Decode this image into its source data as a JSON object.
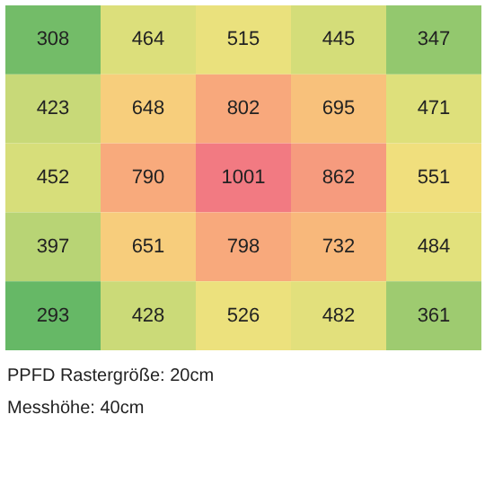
{
  "chart_data": {
    "type": "heatmap",
    "categories": [
      null,
      null,
      null,
      null,
      null
    ],
    "y_categories": [
      null,
      null,
      null,
      null,
      null
    ],
    "cells": [
      [
        308,
        464,
        515,
        445,
        347
      ],
      [
        423,
        648,
        802,
        695,
        471
      ],
      [
        452,
        790,
        1001,
        862,
        551
      ],
      [
        397,
        651,
        798,
        732,
        484
      ],
      [
        293,
        428,
        526,
        482,
        361
      ]
    ],
    "data_labels": true,
    "annotations": [
      "PPFD Rastergröße: 20cm",
      "Messhöhe: 40cm"
    ]
  }
}
